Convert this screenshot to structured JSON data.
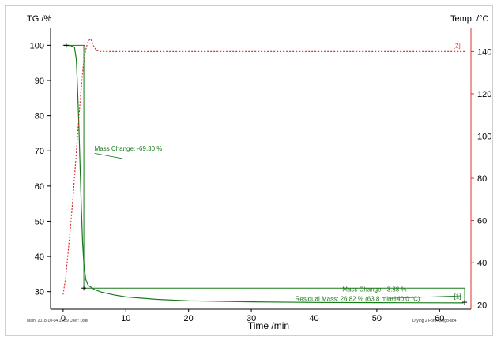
{
  "chart_data": {
    "type": "line",
    "left_axis_label": "TG /%",
    "right_axis_label": "Temp. /°C",
    "x_axis_label": "Time /min",
    "xlim": [
      -2,
      65
    ],
    "ylim_left": [
      25,
      103
    ],
    "ylim_right": [
      18,
      148
    ],
    "x_ticks": [
      0,
      10,
      20,
      30,
      40,
      50,
      60
    ],
    "left_ticks": [
      30,
      40,
      50,
      60,
      70,
      80,
      90,
      100
    ],
    "right_ticks": [
      20,
      40,
      60,
      80,
      100,
      120,
      140
    ],
    "colors": {
      "tg": "#1a7a1a",
      "temp": "#e03030",
      "axis": "#000000",
      "right_axis": "#e03030"
    },
    "series": [
      {
        "axis": "left",
        "style": "solid",
        "points": [
          [
            0,
            100
          ],
          [
            1.2,
            99.9
          ],
          [
            1.8,
            99.5
          ],
          [
            2.1,
            96
          ],
          [
            2.3,
            88
          ],
          [
            2.5,
            78
          ],
          [
            2.7,
            66
          ],
          [
            2.9,
            54
          ],
          [
            3.1,
            44
          ],
          [
            3.3,
            38
          ],
          [
            3.6,
            33.5
          ],
          [
            4,
            31.8
          ],
          [
            5,
            30.6
          ],
          [
            6,
            29.9
          ],
          [
            8,
            29.1
          ],
          [
            10,
            28.5
          ],
          [
            15,
            27.8
          ],
          [
            20,
            27.4
          ],
          [
            30,
            27.1
          ],
          [
            40,
            26.95
          ],
          [
            50,
            26.88
          ],
          [
            60,
            26.84
          ],
          [
            63.8,
            26.82
          ]
        ]
      },
      {
        "axis": "right",
        "style": "dotted",
        "points": [
          [
            0,
            25
          ],
          [
            0.4,
            33
          ],
          [
            0.8,
            45
          ],
          [
            1.2,
            58
          ],
          [
            1.6,
            72
          ],
          [
            2,
            88
          ],
          [
            2.4,
            104
          ],
          [
            2.8,
            120
          ],
          [
            3.2,
            133
          ],
          [
            3.6,
            141
          ],
          [
            4,
            145
          ],
          [
            4.4,
            146
          ],
          [
            4.8,
            143
          ],
          [
            5.3,
            140.5
          ],
          [
            6,
            140
          ],
          [
            20,
            140
          ],
          [
            40,
            140
          ],
          [
            60,
            140
          ],
          [
            64,
            140
          ]
        ]
      }
    ],
    "annotations": [
      {
        "text": "Mass Change: -69.30 %",
        "x": 5,
        "y": 70
      },
      {
        "text": "Mass Change: -3.88 %",
        "x": 44.5,
        "y": 30
      },
      {
        "text": "Residual Mass: 26.82 % (63.8 min/140.0 °C)",
        "x": 37,
        "y": 27.3
      },
      {
        "text": "[2]",
        "x": 62.2,
        "y": 141.8
      },
      {
        "text": "[1]",
        "x": 62.3,
        "y": 28
      }
    ]
  },
  "footer": {
    "main_label": "Main",
    "timestamp": "2018-10-04 11:59",
    "user": "User: User",
    "right_text": "Drying 2 Form-8.ngb-sb4"
  }
}
